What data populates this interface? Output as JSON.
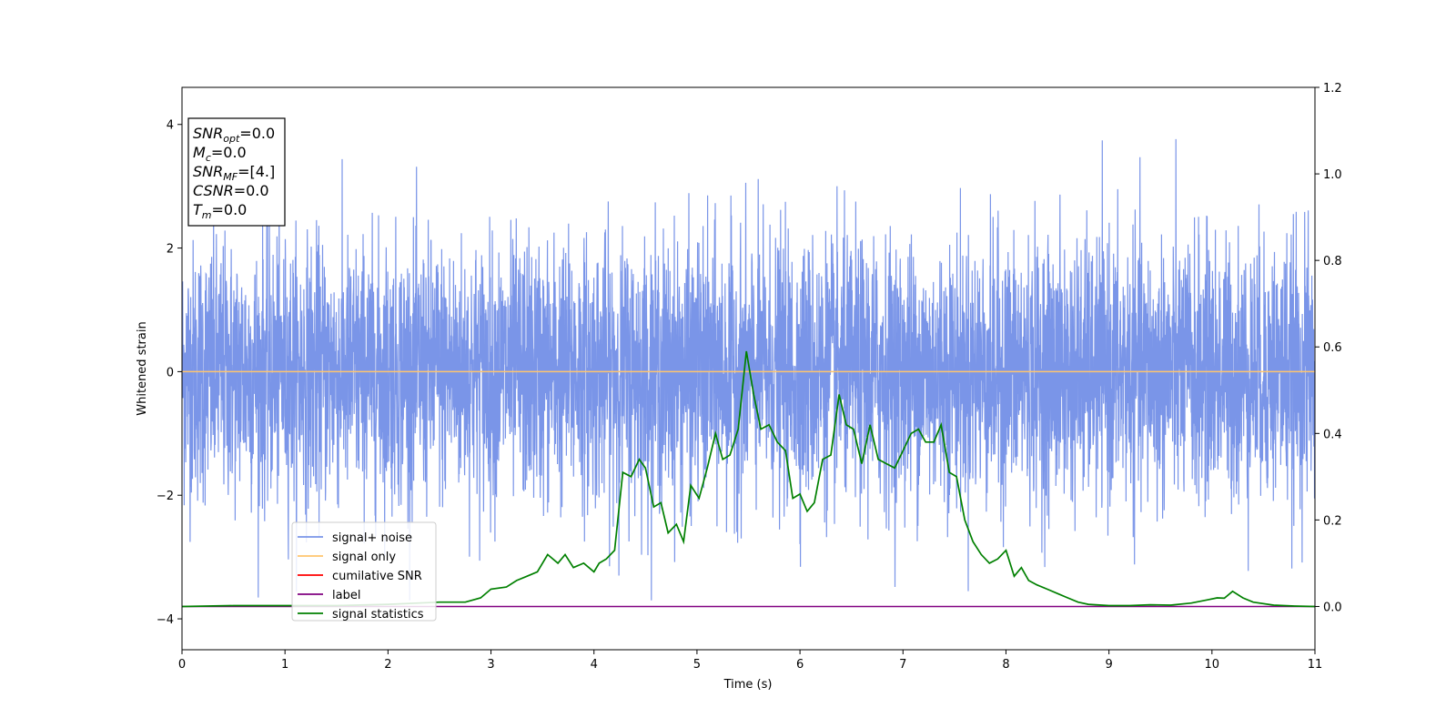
{
  "chart_data": {
    "type": "line",
    "xlabel": "Time (s)",
    "ylabel": "Whitened strain",
    "xlim": [
      0,
      11
    ],
    "ylim": [
      -4.5,
      4.6
    ],
    "y2lim": [
      -0.1,
      1.2
    ],
    "xticks": [
      "0",
      "1",
      "2",
      "3",
      "4",
      "5",
      "6",
      "7",
      "8",
      "9",
      "10",
      "11"
    ],
    "yticks": [
      "−4",
      "−2",
      "0",
      "2",
      "4"
    ],
    "y2ticks": [
      "0.0",
      "0.2",
      "0.4",
      "0.6",
      "0.8",
      "1.0",
      "1.2"
    ],
    "grid": false,
    "legend_position": "lower-left",
    "legend": [
      {
        "label": "signal+ noise",
        "color": "#7a95e8"
      },
      {
        "label": "signal only",
        "color": "#ffc56e"
      },
      {
        "label": "cumilative SNR",
        "color": "#ff0000"
      },
      {
        "label": "label",
        "color": "#800080"
      },
      {
        "label": "signal statistics",
        "color": "#008000"
      }
    ],
    "info_box": [
      {
        "base": "SNR",
        "sub": "opt",
        "value": "=0.0"
      },
      {
        "base": "M",
        "sub": "c",
        "value": "=0.0"
      },
      {
        "base": "SNR",
        "sub": "MF",
        "value": "=[4.]"
      },
      {
        "base": "CSNR",
        "sub": "",
        "value": "=0.0"
      },
      {
        "base": "T",
        "sub": "m",
        "value": "=0.0"
      }
    ],
    "series": [
      {
        "name": "signal+ noise",
        "axis": "left",
        "color": "#7a95e8",
        "style": "dense-noise",
        "approx_sigma": 1.0,
        "approx_peak_abs": 4.1
      },
      {
        "name": "signal only",
        "axis": "left",
        "color": "#ffc56e",
        "x": [
          0,
          11
        ],
        "y": [
          0,
          0
        ]
      },
      {
        "name": "cumilative SNR",
        "axis": "left",
        "color": "#ff0000",
        "x": [],
        "y": []
      },
      {
        "name": "label",
        "axis": "right",
        "color": "#800080",
        "x": [
          0,
          11
        ],
        "y": [
          0,
          0
        ]
      },
      {
        "name": "signal statistics",
        "axis": "right",
        "color": "#008000",
        "x": [
          0,
          0.5,
          1.0,
          1.5,
          2.0,
          2.5,
          2.75,
          2.9,
          3.0,
          3.15,
          3.25,
          3.35,
          3.45,
          3.55,
          3.65,
          3.72,
          3.8,
          3.9,
          4.0,
          4.05,
          4.12,
          4.2,
          4.28,
          4.36,
          4.44,
          4.5,
          4.58,
          4.65,
          4.72,
          4.8,
          4.87,
          4.94,
          5.02,
          5.1,
          5.18,
          5.25,
          5.32,
          5.4,
          5.48,
          5.55,
          5.62,
          5.7,
          5.78,
          5.86,
          5.93,
          6.0,
          6.07,
          6.14,
          6.22,
          6.3,
          6.38,
          6.45,
          6.52,
          6.6,
          6.68,
          6.76,
          6.84,
          6.92,
          7.0,
          7.08,
          7.15,
          7.22,
          7.3,
          7.37,
          7.45,
          7.52,
          7.6,
          7.68,
          7.76,
          7.84,
          7.92,
          8.0,
          8.08,
          8.15,
          8.22,
          8.3,
          8.4,
          8.5,
          8.6,
          8.7,
          8.8,
          9.0,
          9.2,
          9.4,
          9.6,
          9.8,
          9.95,
          10.05,
          10.12,
          10.2,
          10.3,
          10.4,
          10.6,
          10.8,
          11.0
        ],
        "y": [
          0.0,
          0.002,
          0.002,
          0.002,
          0.005,
          0.01,
          0.01,
          0.02,
          0.04,
          0.045,
          0.06,
          0.07,
          0.08,
          0.12,
          0.1,
          0.12,
          0.09,
          0.1,
          0.08,
          0.1,
          0.11,
          0.13,
          0.31,
          0.3,
          0.34,
          0.32,
          0.23,
          0.24,
          0.17,
          0.19,
          0.15,
          0.28,
          0.25,
          0.32,
          0.4,
          0.34,
          0.35,
          0.41,
          0.59,
          0.49,
          0.41,
          0.42,
          0.38,
          0.36,
          0.25,
          0.26,
          0.22,
          0.24,
          0.34,
          0.35,
          0.49,
          0.42,
          0.41,
          0.33,
          0.42,
          0.34,
          0.33,
          0.32,
          0.36,
          0.4,
          0.41,
          0.38,
          0.38,
          0.42,
          0.31,
          0.3,
          0.2,
          0.15,
          0.12,
          0.1,
          0.11,
          0.13,
          0.07,
          0.09,
          0.06,
          0.05,
          0.04,
          0.03,
          0.02,
          0.01,
          0.005,
          0.002,
          0.002,
          0.004,
          0.003,
          0.008,
          0.015,
          0.02,
          0.019,
          0.035,
          0.02,
          0.01,
          0.003,
          0.001,
          0.0
        ]
      }
    ]
  }
}
